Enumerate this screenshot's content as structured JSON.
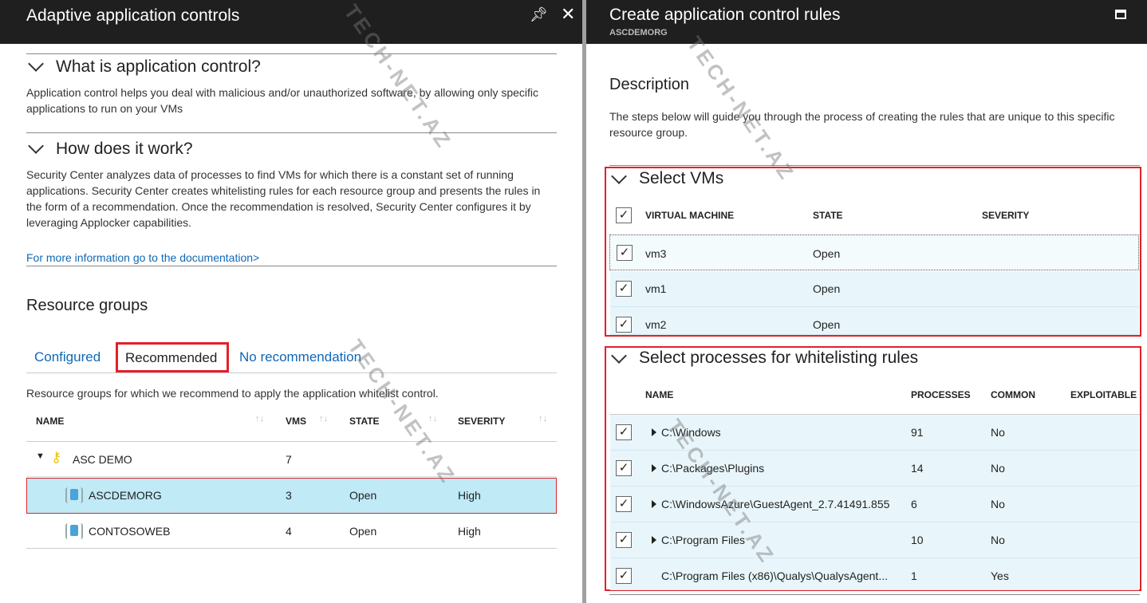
{
  "left_panel": {
    "title": "Adaptive application controls",
    "icons": [
      "pin-icon",
      "close-icon"
    ],
    "what_section": {
      "title": "What is application control?",
      "text": "Application control helps you deal with malicious and/or unauthorized software, by allowing only specific applications to run on your VMs"
    },
    "how_section": {
      "title": "How does it work?",
      "text": "Security Center analyzes data of processes to find VMs for which there is a constant set of running applications. Security Center creates whitelisting rules for each resource group and presents the rules in the form of a recommendation. Once the recommendation is resolved, Security Center configures it by leveraging Applocker capabilities.",
      "link": "For more information go to the documentation>"
    },
    "resource_groups": {
      "title": "Resource groups",
      "tabs": [
        {
          "label": "Configured"
        },
        {
          "label": "Recommended",
          "selected": true
        },
        {
          "label": "No recommendation"
        }
      ],
      "description": "Resource groups for which we recommend to apply the application whitelist control.",
      "columns": [
        "NAME",
        "VMS",
        "STATE",
        "SEVERITY"
      ],
      "rows": [
        {
          "name": "ASC DEMO",
          "vms": "7",
          "state": "",
          "severity": "",
          "type": "subscription",
          "icon": "key-icon"
        },
        {
          "name": "ASCDEMORG",
          "vms": "3",
          "state": "Open",
          "severity": "High",
          "type": "resource-group",
          "icon": "resource-group-icon",
          "selected": true
        },
        {
          "name": "CONTOSOWEB",
          "vms": "4",
          "state": "Open",
          "severity": "High",
          "type": "resource-group",
          "icon": "resource-group-icon"
        }
      ]
    }
  },
  "right_panel": {
    "title": "Create application control rules",
    "subtitle": "ASCDEMORG",
    "icons": [
      "maximize-icon"
    ],
    "description_title": "Description",
    "description_text": "The steps below will guide you through the process of creating the rules that are unique to this specific resource group.",
    "select_vms": {
      "title": "Select VMs",
      "columns": [
        "VIRTUAL MACHINE",
        "STATE",
        "SEVERITY"
      ],
      "all_checked": true,
      "rows": [
        {
          "name": "vm3",
          "state": "Open",
          "severity": "",
          "checked": true
        },
        {
          "name": "vm1",
          "state": "Open",
          "severity": "",
          "checked": true
        },
        {
          "name": "vm2",
          "state": "Open",
          "severity": "",
          "checked": true
        }
      ]
    },
    "select_processes": {
      "title": "Select processes for whitelisting rules",
      "columns": [
        "NAME",
        "PROCESSES",
        "COMMON",
        "EXPLOITABLE"
      ],
      "rows": [
        {
          "name": "C:\\Windows",
          "processes": "91",
          "common": "No",
          "expandable": true,
          "checked": true
        },
        {
          "name": "C:\\Packages\\Plugins",
          "processes": "14",
          "common": "No",
          "expandable": true,
          "checked": true
        },
        {
          "name": "C:\\WindowsAzure\\GuestAgent_2.7.41491.855",
          "processes": "6",
          "common": "No",
          "expandable": true,
          "checked": true
        },
        {
          "name": "C:\\Program Files",
          "processes": "10",
          "common": "No",
          "expandable": true,
          "checked": true
        },
        {
          "name": "C:\\Program Files (x86)\\Qualys\\QualysAgent...",
          "processes": "1",
          "common": "Yes",
          "expandable": false,
          "checked": true
        }
      ]
    }
  },
  "watermark": "TECH-NET.AZ",
  "colors": {
    "header_bg": "#1f1f1f",
    "highlight": "#bfeaf6",
    "row_bg": "#e8f6fb",
    "red_box": "#e3202a",
    "link": "#0f68b5"
  }
}
